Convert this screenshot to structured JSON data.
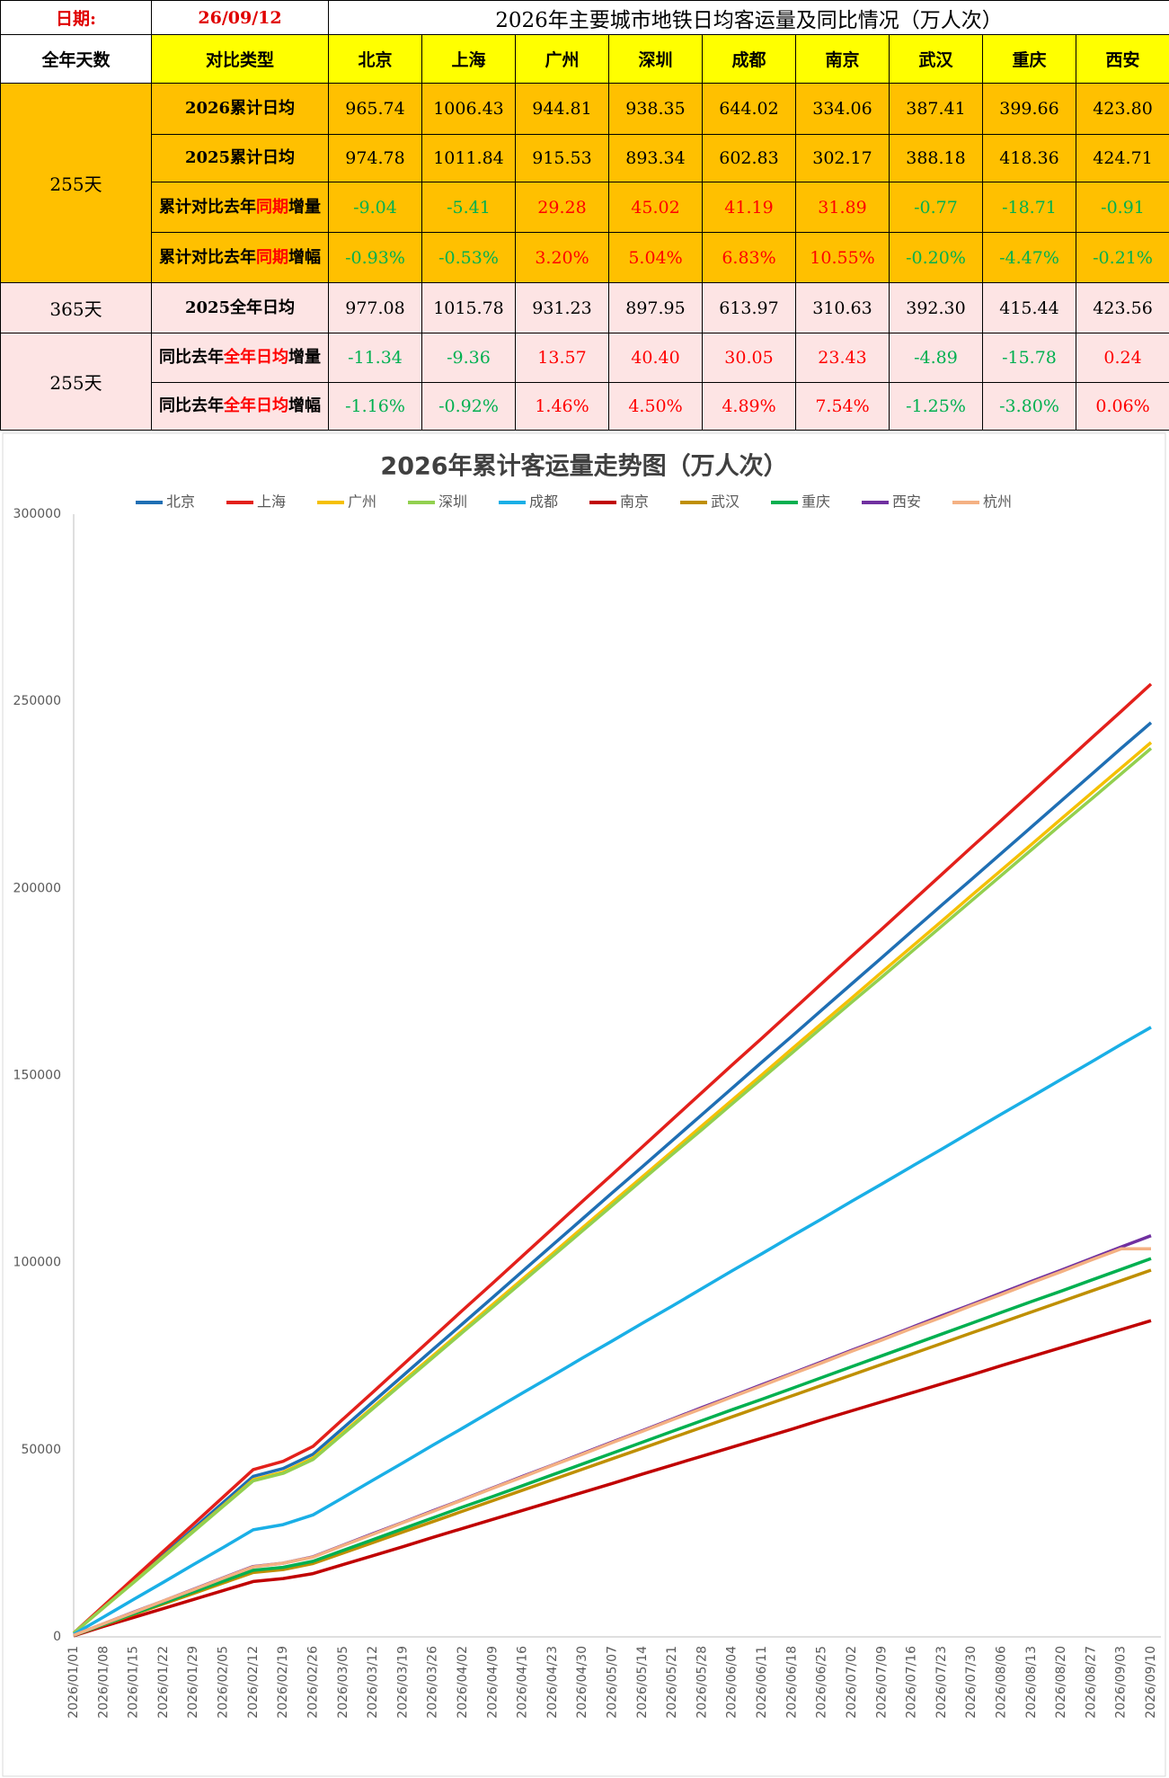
{
  "table": {
    "date_label": "日期:",
    "date": "26/09/12",
    "title": "2026年主要城市地铁日均客运量及同比情况（万人次）",
    "header": [
      "全年天数",
      "对比类型",
      "北京",
      "上海",
      "广州",
      "深圳",
      "成都",
      "南京",
      "武汉",
      "重庆",
      "西安"
    ],
    "groups": [
      {
        "days": "255天",
        "color": "#ffc000",
        "rows": [
          {
            "label": [
              "2026累计日均"
            ],
            "values": [
              "965.74",
              "1006.43",
              "944.81",
              "938.35",
              "644.02",
              "334.06",
              "387.41",
              "399.66",
              "423.80"
            ]
          },
          {
            "label": [
              "2025累计日均"
            ],
            "values": [
              "974.78",
              "1011.84",
              "915.53",
              "893.34",
              "602.83",
              "302.17",
              "388.18",
              "418.36",
              "424.71"
            ]
          },
          {
            "label": [
              "累计对比去年",
              "同期",
              "增量"
            ],
            "values": [
              "-9.04",
              "-5.41",
              "29.28",
              "45.02",
              "41.19",
              "31.89",
              "-0.77",
              "-18.71",
              "-0.91"
            ]
          },
          {
            "label": [
              "累计对比去年",
              "同期",
              "增幅"
            ],
            "values": [
              "-0.93%",
              "-0.53%",
              "3.20%",
              "5.04%",
              "6.83%",
              "10.55%",
              "-0.20%",
              "-4.47%",
              "-0.21%"
            ]
          }
        ]
      },
      {
        "days": "365天",
        "color": "#fde4e4",
        "rows": [
          {
            "label": [
              "2025全年日均"
            ],
            "values": [
              "977.08",
              "1015.78",
              "931.23",
              "897.95",
              "613.97",
              "310.63",
              "392.30",
              "415.44",
              "423.56"
            ]
          }
        ]
      },
      {
        "days": "255天",
        "color": "#fde4e4",
        "rows": [
          {
            "label": [
              "同比去年",
              "全年日均",
              "增量"
            ],
            "values": [
              "-11.34",
              "-9.36",
              "13.57",
              "40.40",
              "30.05",
              "23.43",
              "-4.89",
              "-15.78",
              "0.24"
            ]
          },
          {
            "label": [
              "同比去年",
              "全年日均",
              "增幅"
            ],
            "values": [
              "-1.16%",
              "-0.92%",
              "1.46%",
              "4.50%",
              "4.89%",
              "7.54%",
              "-1.25%",
              "-3.80%",
              "0.06%"
            ]
          }
        ]
      }
    ]
  },
  "chart_data": {
    "type": "line",
    "title": "2026年累计客运量走势图（万人次）",
    "legend": "top",
    "grid": false,
    "categories": [
      "2026/01/01",
      "2026/01/08",
      "2026/01/15",
      "2026/01/22",
      "2026/01/29",
      "2026/02/05",
      "2026/02/12",
      "2026/02/19",
      "2026/02/26",
      "2026/03/05",
      "2026/03/12",
      "2026/03/19",
      "2026/03/26",
      "2026/04/02",
      "2026/04/09",
      "2026/04/16",
      "2026/04/23",
      "2026/04/30",
      "2026/05/07",
      "2026/05/14",
      "2026/05/21",
      "2026/05/28",
      "2026/06/04",
      "2026/06/11",
      "2026/06/18",
      "2026/06/25",
      "2026/07/02",
      "2026/07/09",
      "2026/07/16",
      "2026/07/23",
      "2026/07/30",
      "2026/08/06",
      "2026/08/13",
      "2026/08/20",
      "2026/08/27",
      "2026/09/03",
      "2026/09/10"
    ],
    "ylim": [
      0,
      300000
    ],
    "yticks": [
      0,
      50000,
      100000,
      150000,
      200000,
      250000,
      300000
    ],
    "series": [
      {
        "name": "北京",
        "color": "#1f6fb4",
        "values": [
          1000,
          8000,
          15000,
          21900,
          28900,
          35900,
          42900,
          45000,
          48800,
          55800,
          62800,
          69800,
          76800,
          83700,
          90700,
          97700,
          104700,
          111700,
          118700,
          125600,
          132600,
          139600,
          146600,
          153600,
          160500,
          167500,
          174500,
          181500,
          188500,
          195500,
          202400,
          209400,
          216400,
          223400,
          230400,
          237400,
          244300
        ]
      },
      {
        "name": "上海",
        "color": "#e3201b",
        "values": [
          1000,
          8300,
          15600,
          22900,
          30100,
          37400,
          44700,
          46900,
          50900,
          58200,
          65400,
          72700,
          80000,
          87300,
          94500,
          101800,
          109100,
          116400,
          123600,
          130900,
          138200,
          145500,
          152800,
          160000,
          167300,
          174600,
          181900,
          189100,
          196400,
          203700,
          211000,
          218200,
          225500,
          232800,
          240100,
          247300,
          254600
        ]
      },
      {
        "name": "广州",
        "color": "#f5c000",
        "values": [
          1000,
          7800,
          14600,
          21500,
          28300,
          35100,
          42000,
          44000,
          47800,
          54600,
          61400,
          68300,
          75100,
          81900,
          88800,
          95600,
          102400,
          109300,
          116100,
          122900,
          129700,
          136600,
          143400,
          150200,
          157100,
          163900,
          170700,
          177600,
          184400,
          191200,
          198100,
          204900,
          211700,
          218600,
          225400,
          232200,
          239000
        ]
      },
      {
        "name": "深圳",
        "color": "#92d050",
        "values": [
          1000,
          7800,
          14500,
          21300,
          28100,
          34900,
          41700,
          43700,
          47400,
          54200,
          61000,
          67800,
          74600,
          81400,
          88100,
          94900,
          101700,
          108500,
          115300,
          122100,
          128900,
          135600,
          142400,
          149200,
          156000,
          162800,
          169600,
          176300,
          183100,
          189900,
          196700,
          203500,
          210300,
          217100,
          223800,
          230600,
          237400
        ]
      },
      {
        "name": "成都",
        "color": "#1aafe6",
        "values": [
          700,
          5300,
          10000,
          14600,
          19300,
          23900,
          28600,
          30000,
          32600,
          37200,
          41900,
          46500,
          51200,
          55800,
          60500,
          65200,
          69800,
          74500,
          79100,
          83800,
          88400,
          93100,
          97800,
          102400,
          107100,
          111700,
          116400,
          121000,
          125700,
          130300,
          135000,
          139700,
          144300,
          149000,
          153600,
          158300,
          162900
        ]
      },
      {
        "name": "南京",
        "color": "#c00000",
        "values": [
          300,
          2800,
          5200,
          7600,
          10000,
          12400,
          14800,
          15600,
          16900,
          19300,
          21700,
          24100,
          26600,
          29000,
          31400,
          33800,
          36200,
          38600,
          41000,
          43500,
          45900,
          48300,
          50700,
          53100,
          55500,
          58000,
          60400,
          62800,
          65200,
          67600,
          70000,
          72500,
          74900,
          77300,
          79700,
          82100,
          84500
        ]
      },
      {
        "name": "武汉",
        "color": "#bf8f00",
        "values": [
          400,
          3200,
          6000,
          8800,
          11600,
          14400,
          17200,
          18000,
          19600,
          22400,
          25200,
          28000,
          30800,
          33600,
          36400,
          39200,
          42000,
          44800,
          47600,
          50400,
          53200,
          56000,
          58800,
          61600,
          64400,
          67200,
          70000,
          72800,
          75600,
          78400,
          81200,
          84000,
          86800,
          89600,
          92400,
          95200,
          98000
        ]
      },
      {
        "name": "重庆",
        "color": "#00b050",
        "values": [
          400,
          3300,
          6200,
          9100,
          12000,
          14900,
          17800,
          18600,
          20200,
          23100,
          26000,
          28900,
          31800,
          34700,
          37500,
          40400,
          43300,
          46200,
          49100,
          52000,
          54900,
          57800,
          60700,
          63500,
          66400,
          69300,
          72200,
          75100,
          78000,
          80900,
          83800,
          86700,
          89600,
          92400,
          95300,
          98200,
          101100
        ]
      },
      {
        "name": "西安",
        "color": "#7030a0",
        "values": [
          400,
          3500,
          6600,
          9600,
          12700,
          15800,
          18800,
          19700,
          21400,
          24500,
          27600,
          30600,
          33700,
          36700,
          39800,
          42900,
          45900,
          49000,
          52100,
          55100,
          58200,
          61300,
          64300,
          67400,
          70400,
          73500,
          76600,
          79600,
          82700,
          85800,
          88800,
          91900,
          95000,
          98000,
          101100,
          104200,
          107200
        ]
      },
      {
        "name": "杭州",
        "color": "#f4b183",
        "values": [
          400,
          3500,
          6500,
          9600,
          12600,
          15700,
          18700,
          19700,
          21300,
          24400,
          27400,
          30500,
          33500,
          36600,
          39700,
          42700,
          45800,
          48800,
          51900,
          54900,
          58000,
          61000,
          64100,
          67100,
          70200,
          73200,
          76300,
          79300,
          82400,
          85400,
          88500,
          91500,
          94600,
          97600,
          100700,
          103700,
          103700
        ]
      }
    ]
  }
}
